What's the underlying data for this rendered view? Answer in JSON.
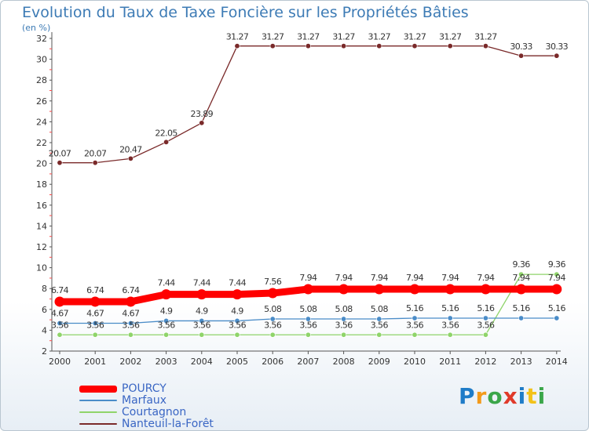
{
  "chart_data": {
    "type": "line",
    "title": "Evolution du Taux de Taxe Foncière sur les Propriétés Bâties",
    "unit_label": "(en %)",
    "x": [
      "2000",
      "2001",
      "2002",
      "2003",
      "2004",
      "2005",
      "2006",
      "2007",
      "2008",
      "2009",
      "2010",
      "2011",
      "2012",
      "2013",
      "2014"
    ],
    "ylim": [
      2,
      32
    ],
    "yticks": [
      "2",
      "4",
      "6",
      "8",
      "10",
      "12",
      "14",
      "16",
      "18",
      "20",
      "22",
      "24",
      "26",
      "28",
      "30",
      "32"
    ],
    "series": [
      {
        "name": "Nanteuil-la-Forêt",
        "color": "#7a2a2a",
        "values": [
          20.07,
          20.07,
          20.47,
          22.05,
          23.89,
          31.27,
          31.27,
          31.27,
          31.27,
          31.27,
          31.27,
          31.27,
          31.27,
          30.33,
          30.33
        ],
        "labels": [
          "20.07",
          "20.07",
          "20.47",
          "22.05",
          "23.89",
          "31.27",
          "31.27",
          "31.27",
          "31.27",
          "31.27",
          "31.27",
          "31.27",
          "31.27",
          "30.33",
          "30.33"
        ]
      },
      {
        "name": "POURCY",
        "color": "#ff0000",
        "values": [
          6.74,
          6.74,
          6.74,
          7.44,
          7.44,
          7.44,
          7.56,
          7.94,
          7.94,
          7.94,
          7.94,
          7.94,
          7.94,
          7.94,
          7.94
        ],
        "labels": [
          "6.74",
          "6.74",
          "6.74",
          "7.44",
          "7.44",
          "7.44",
          "7.56",
          "7.94",
          "7.94",
          "7.94",
          "7.94",
          "7.94",
          "7.94",
          "7.94",
          "7.94"
        ]
      },
      {
        "name": "Marfaux",
        "color": "#4a8cc8",
        "values": [
          4.67,
          4.67,
          4.67,
          4.9,
          4.9,
          4.9,
          5.08,
          5.08,
          5.08,
          5.08,
          5.16,
          5.16,
          5.16,
          5.16,
          5.16
        ],
        "labels": [
          "4.67",
          "4.67",
          "4.67",
          "4.9",
          "4.9",
          "4.9",
          "5.08",
          "5.08",
          "5.08",
          "5.08",
          "5.16",
          "5.16",
          "5.16",
          "5.16",
          "5.16"
        ]
      },
      {
        "name": "Courtagnon",
        "color": "#8fd46a",
        "values": [
          3.56,
          3.56,
          3.56,
          3.56,
          3.56,
          3.56,
          3.56,
          3.56,
          3.56,
          3.56,
          3.56,
          3.56,
          3.56,
          9.36,
          9.36
        ],
        "labels": [
          "3.56",
          "3.56",
          "3.56",
          "3.56",
          "3.56",
          "3.56",
          "3.56",
          "3.56",
          "3.56",
          "3.56",
          "3.56",
          "3.56",
          "3.56",
          "9.36",
          "9.36"
        ]
      }
    ],
    "legend": [
      "POURCY",
      "Marfaux",
      "Courtagnon",
      "Nanteuil-la-Forêt"
    ],
    "grid": false
  },
  "logo": {
    "letters": [
      "P",
      "r",
      "o",
      "x",
      "i",
      "t",
      "i"
    ],
    "colors": [
      "#1f7cc8",
      "#f39a1a",
      "#3ba64a",
      "#e03a2a",
      "#1f7cc8",
      "#f3c21a",
      "#3ba64a"
    ]
  }
}
